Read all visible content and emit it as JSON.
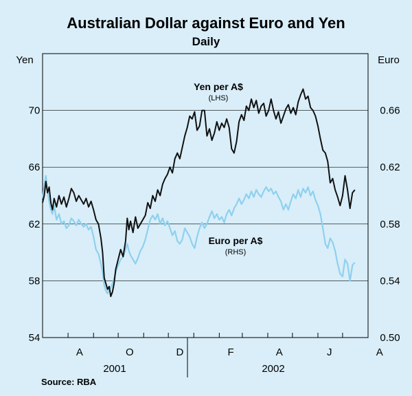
{
  "chart_data": {
    "type": "line",
    "title": "Australian Dollar against Euro and Yen",
    "subtitle": "Daily",
    "source": "Source: RBA",
    "left_axis": {
      "unit": "Yen",
      "min": 54,
      "max": 74,
      "ticks": [
        54,
        58,
        62,
        66,
        70
      ]
    },
    "right_axis": {
      "unit": "Euro",
      "min": 0.5,
      "max": 0.7,
      "ticks": [
        "0.50",
        "0.54",
        "0.58",
        "0.62",
        "0.66"
      ]
    },
    "x_axis": {
      "month_labels": [
        "A",
        "O",
        "D",
        "F",
        "A",
        "J",
        "A"
      ],
      "year_labels": [
        "2001",
        "2002"
      ]
    },
    "annotations": {
      "yen": {
        "label": "Yen per A$",
        "sub": "(LHS)"
      },
      "euro": {
        "label": "Euro per A$",
        "sub": "(RHS)"
      }
    },
    "series": [
      {
        "name": "Yen per A$",
        "axis": "left",
        "color": "#111111",
        "points": [
          [
            "2001-07-01",
            63.5
          ],
          [
            "2001-07-03",
            64.0
          ],
          [
            "2001-07-05",
            65.0
          ],
          [
            "2001-07-07",
            64.2
          ],
          [
            "2001-07-09",
            64.6
          ],
          [
            "2001-07-11",
            63.5
          ],
          [
            "2001-07-13",
            63.0
          ],
          [
            "2001-07-15",
            63.8
          ],
          [
            "2001-07-18",
            63.2
          ],
          [
            "2001-07-21",
            64.0
          ],
          [
            "2001-07-24",
            63.4
          ],
          [
            "2001-07-27",
            63.9
          ],
          [
            "2001-07-30",
            63.2
          ],
          [
            "2001-08-02",
            63.8
          ],
          [
            "2001-08-05",
            64.5
          ],
          [
            "2001-08-08",
            64.2
          ],
          [
            "2001-08-11",
            63.6
          ],
          [
            "2001-08-14",
            64.0
          ],
          [
            "2001-08-17",
            63.7
          ],
          [
            "2001-08-20",
            63.4
          ],
          [
            "2001-08-23",
            63.8
          ],
          [
            "2001-08-26",
            63.2
          ],
          [
            "2001-08-29",
            63.6
          ],
          [
            "2001-09-01",
            63.0
          ],
          [
            "2001-09-04",
            62.3
          ],
          [
            "2001-09-07",
            62.0
          ],
          [
            "2001-09-10",
            61.0
          ],
          [
            "2001-09-12",
            60.0
          ],
          [
            "2001-09-14",
            58.2
          ],
          [
            "2001-09-16",
            57.8
          ],
          [
            "2001-09-18",
            57.4
          ],
          [
            "2001-09-20",
            57.6
          ],
          [
            "2001-09-22",
            56.9
          ],
          [
            "2001-09-24",
            57.2
          ],
          [
            "2001-09-26",
            57.8
          ],
          [
            "2001-09-28",
            58.8
          ],
          [
            "2001-10-01",
            59.5
          ],
          [
            "2001-10-04",
            60.2
          ],
          [
            "2001-10-07",
            59.7
          ],
          [
            "2001-10-10",
            60.8
          ],
          [
            "2001-10-12",
            62.4
          ],
          [
            "2001-10-14",
            61.6
          ],
          [
            "2001-10-16",
            62.2
          ],
          [
            "2001-10-19",
            61.4
          ],
          [
            "2001-10-22",
            62.5
          ],
          [
            "2001-10-25",
            61.7
          ],
          [
            "2001-10-28",
            62.0
          ],
          [
            "2001-10-31",
            62.3
          ],
          [
            "2001-11-03",
            62.6
          ],
          [
            "2001-11-06",
            63.5
          ],
          [
            "2001-11-09",
            63.1
          ],
          [
            "2001-11-12",
            64.0
          ],
          [
            "2001-11-15",
            63.6
          ],
          [
            "2001-11-18",
            64.4
          ],
          [
            "2001-11-21",
            64.0
          ],
          [
            "2001-11-24",
            64.8
          ],
          [
            "2001-11-27",
            65.2
          ],
          [
            "2001-11-30",
            65.5
          ],
          [
            "2001-12-03",
            66.0
          ],
          [
            "2001-12-06",
            65.6
          ],
          [
            "2001-12-09",
            66.6
          ],
          [
            "2001-12-12",
            67.0
          ],
          [
            "2001-12-15",
            66.6
          ],
          [
            "2001-12-18",
            67.4
          ],
          [
            "2001-12-21",
            68.2
          ],
          [
            "2001-12-24",
            68.8
          ],
          [
            "2001-12-27",
            69.6
          ],
          [
            "2001-12-30",
            69.4
          ],
          [
            "2002-01-02",
            69.9
          ],
          [
            "2002-01-05",
            68.6
          ],
          [
            "2002-01-08",
            68.9
          ],
          [
            "2002-01-11",
            70.0
          ],
          [
            "2002-01-14",
            70.0
          ],
          [
            "2002-01-17",
            68.2
          ],
          [
            "2002-01-20",
            68.7
          ],
          [
            "2002-01-23",
            67.9
          ],
          [
            "2002-01-26",
            68.4
          ],
          [
            "2002-01-29",
            69.2
          ],
          [
            "2002-02-01",
            68.6
          ],
          [
            "2002-02-04",
            69.1
          ],
          [
            "2002-02-07",
            68.8
          ],
          [
            "2002-02-10",
            69.4
          ],
          [
            "2002-02-13",
            68.8
          ],
          [
            "2002-02-16",
            67.3
          ],
          [
            "2002-02-19",
            67.0
          ],
          [
            "2002-02-22",
            67.8
          ],
          [
            "2002-02-25",
            69.2
          ],
          [
            "2002-02-28",
            69.7
          ],
          [
            "2002-03-03",
            69.3
          ],
          [
            "2002-03-06",
            70.3
          ],
          [
            "2002-03-09",
            70.0
          ],
          [
            "2002-03-12",
            70.8
          ],
          [
            "2002-03-15",
            70.2
          ],
          [
            "2002-03-18",
            70.7
          ],
          [
            "2002-03-21",
            69.8
          ],
          [
            "2002-03-24",
            70.3
          ],
          [
            "2002-03-27",
            70.5
          ],
          [
            "2002-03-30",
            69.6
          ],
          [
            "2002-04-02",
            70.0
          ],
          [
            "2002-04-05",
            70.8
          ],
          [
            "2002-04-08",
            70.0
          ],
          [
            "2002-04-11",
            69.4
          ],
          [
            "2002-04-14",
            69.9
          ],
          [
            "2002-04-17",
            69.1
          ],
          [
            "2002-04-20",
            69.6
          ],
          [
            "2002-04-23",
            70.1
          ],
          [
            "2002-04-26",
            70.4
          ],
          [
            "2002-04-29",
            69.8
          ],
          [
            "2002-05-02",
            70.2
          ],
          [
            "2002-05-05",
            69.7
          ],
          [
            "2002-05-08",
            70.6
          ],
          [
            "2002-05-11",
            71.1
          ],
          [
            "2002-05-14",
            71.5
          ],
          [
            "2002-05-17",
            70.8
          ],
          [
            "2002-05-20",
            71.0
          ],
          [
            "2002-05-23",
            70.2
          ],
          [
            "2002-05-26",
            70.0
          ],
          [
            "2002-05-29",
            69.6
          ],
          [
            "2002-06-01",
            68.9
          ],
          [
            "2002-06-04",
            68.0
          ],
          [
            "2002-06-07",
            67.2
          ],
          [
            "2002-06-10",
            67.0
          ],
          [
            "2002-06-13",
            66.4
          ],
          [
            "2002-06-16",
            64.9
          ],
          [
            "2002-06-19",
            65.2
          ],
          [
            "2002-06-22",
            64.4
          ],
          [
            "2002-06-25",
            63.9
          ],
          [
            "2002-06-28",
            63.3
          ],
          [
            "2002-07-01",
            64.0
          ],
          [
            "2002-07-04",
            65.4
          ],
          [
            "2002-07-07",
            64.4
          ],
          [
            "2002-07-10",
            63.1
          ],
          [
            "2002-07-13",
            64.2
          ],
          [
            "2002-07-16",
            64.4
          ]
        ]
      },
      {
        "name": "Euro per A$",
        "axis": "right",
        "color": "#8fd0ee",
        "points": [
          [
            "2001-07-01",
            0.598
          ],
          [
            "2001-07-03",
            0.607
          ],
          [
            "2001-07-05",
            0.614
          ],
          [
            "2001-07-07",
            0.603
          ],
          [
            "2001-07-09",
            0.596
          ],
          [
            "2001-07-11",
            0.59
          ],
          [
            "2001-07-13",
            0.587
          ],
          [
            "2001-07-15",
            0.593
          ],
          [
            "2001-07-18",
            0.583
          ],
          [
            "2001-07-21",
            0.587
          ],
          [
            "2001-07-24",
            0.58
          ],
          [
            "2001-07-27",
            0.582
          ],
          [
            "2001-07-30",
            0.577
          ],
          [
            "2001-08-02",
            0.579
          ],
          [
            "2001-08-05",
            0.584
          ],
          [
            "2001-08-08",
            0.582
          ],
          [
            "2001-08-11",
            0.579
          ],
          [
            "2001-08-14",
            0.583
          ],
          [
            "2001-08-17",
            0.58
          ],
          [
            "2001-08-20",
            0.578
          ],
          [
            "2001-08-23",
            0.58
          ],
          [
            "2001-08-26",
            0.576
          ],
          [
            "2001-08-29",
            0.578
          ],
          [
            "2001-09-01",
            0.571
          ],
          [
            "2001-09-04",
            0.562
          ],
          [
            "2001-09-07",
            0.559
          ],
          [
            "2001-09-10",
            0.552
          ],
          [
            "2001-09-12",
            0.546
          ],
          [
            "2001-09-14",
            0.537
          ],
          [
            "2001-09-16",
            0.533
          ],
          [
            "2001-09-18",
            0.531
          ],
          [
            "2001-09-20",
            0.534
          ],
          [
            "2001-09-22",
            0.535
          ],
          [
            "2001-09-24",
            0.538
          ],
          [
            "2001-09-26",
            0.541
          ],
          [
            "2001-09-28",
            0.546
          ],
          [
            "2001-10-01",
            0.551
          ],
          [
            "2001-10-04",
            0.555
          ],
          [
            "2001-10-07",
            0.557
          ],
          [
            "2001-10-10",
            0.562
          ],
          [
            "2001-10-12",
            0.566
          ],
          [
            "2001-10-14",
            0.561
          ],
          [
            "2001-10-16",
            0.558
          ],
          [
            "2001-10-19",
            0.555
          ],
          [
            "2001-10-22",
            0.552
          ],
          [
            "2001-10-25",
            0.556
          ],
          [
            "2001-10-28",
            0.561
          ],
          [
            "2001-10-31",
            0.564
          ],
          [
            "2001-11-03",
            0.569
          ],
          [
            "2001-11-06",
            0.576
          ],
          [
            "2001-11-09",
            0.583
          ],
          [
            "2001-11-12",
            0.586
          ],
          [
            "2001-11-15",
            0.583
          ],
          [
            "2001-11-18",
            0.587
          ],
          [
            "2001-11-21",
            0.58
          ],
          [
            "2001-11-24",
            0.584
          ],
          [
            "2001-11-27",
            0.579
          ],
          [
            "2001-11-30",
            0.582
          ],
          [
            "2001-12-03",
            0.577
          ],
          [
            "2001-12-06",
            0.572
          ],
          [
            "2001-12-09",
            0.575
          ],
          [
            "2001-12-12",
            0.568
          ],
          [
            "2001-12-15",
            0.566
          ],
          [
            "2001-12-18",
            0.569
          ],
          [
            "2001-12-21",
            0.577
          ],
          [
            "2001-12-24",
            0.574
          ],
          [
            "2001-12-27",
            0.571
          ],
          [
            "2001-12-30",
            0.566
          ],
          [
            "2002-01-02",
            0.563
          ],
          [
            "2002-01-05",
            0.571
          ],
          [
            "2002-01-08",
            0.577
          ],
          [
            "2002-01-11",
            0.581
          ],
          [
            "2002-01-14",
            0.577
          ],
          [
            "2002-01-17",
            0.58
          ],
          [
            "2002-01-20",
            0.585
          ],
          [
            "2002-01-23",
            0.589
          ],
          [
            "2002-01-26",
            0.584
          ],
          [
            "2002-01-29",
            0.587
          ],
          [
            "2002-02-01",
            0.583
          ],
          [
            "2002-02-04",
            0.585
          ],
          [
            "2002-02-07",
            0.581
          ],
          [
            "2002-02-10",
            0.587
          ],
          [
            "2002-02-13",
            0.59
          ],
          [
            "2002-02-16",
            0.586
          ],
          [
            "2002-02-19",
            0.591
          ],
          [
            "2002-02-22",
            0.594
          ],
          [
            "2002-02-25",
            0.598
          ],
          [
            "2002-02-28",
            0.594
          ],
          [
            "2002-03-03",
            0.597
          ],
          [
            "2002-03-06",
            0.601
          ],
          [
            "2002-03-09",
            0.598
          ],
          [
            "2002-03-12",
            0.603
          ],
          [
            "2002-03-15",
            0.599
          ],
          [
            "2002-03-18",
            0.604
          ],
          [
            "2002-03-21",
            0.601
          ],
          [
            "2002-03-24",
            0.599
          ],
          [
            "2002-03-27",
            0.603
          ],
          [
            "2002-03-30",
            0.606
          ],
          [
            "2002-04-02",
            0.603
          ],
          [
            "2002-04-05",
            0.605
          ],
          [
            "2002-04-08",
            0.601
          ],
          [
            "2002-04-11",
            0.603
          ],
          [
            "2002-04-14",
            0.599
          ],
          [
            "2002-04-17",
            0.596
          ],
          [
            "2002-04-20",
            0.59
          ],
          [
            "2002-04-23",
            0.594
          ],
          [
            "2002-04-26",
            0.59
          ],
          [
            "2002-04-29",
            0.596
          ],
          [
            "2002-05-02",
            0.601
          ],
          [
            "2002-05-05",
            0.598
          ],
          [
            "2002-05-08",
            0.604
          ],
          [
            "2002-05-11",
            0.599
          ],
          [
            "2002-05-14",
            0.605
          ],
          [
            "2002-05-17",
            0.602
          ],
          [
            "2002-05-20",
            0.606
          ],
          [
            "2002-05-23",
            0.6
          ],
          [
            "2002-05-26",
            0.603
          ],
          [
            "2002-05-29",
            0.597
          ],
          [
            "2002-06-01",
            0.593
          ],
          [
            "2002-06-04",
            0.587
          ],
          [
            "2002-06-07",
            0.577
          ],
          [
            "2002-06-10",
            0.566
          ],
          [
            "2002-06-13",
            0.563
          ],
          [
            "2002-06-16",
            0.57
          ],
          [
            "2002-06-19",
            0.567
          ],
          [
            "2002-06-22",
            0.561
          ],
          [
            "2002-06-25",
            0.552
          ],
          [
            "2002-06-28",
            0.545
          ],
          [
            "2002-07-01",
            0.543
          ],
          [
            "2002-07-04",
            0.555
          ],
          [
            "2002-07-07",
            0.552
          ],
          [
            "2002-07-10",
            0.54
          ],
          [
            "2002-07-13",
            0.551
          ],
          [
            "2002-07-16",
            0.553
          ]
        ]
      }
    ]
  }
}
